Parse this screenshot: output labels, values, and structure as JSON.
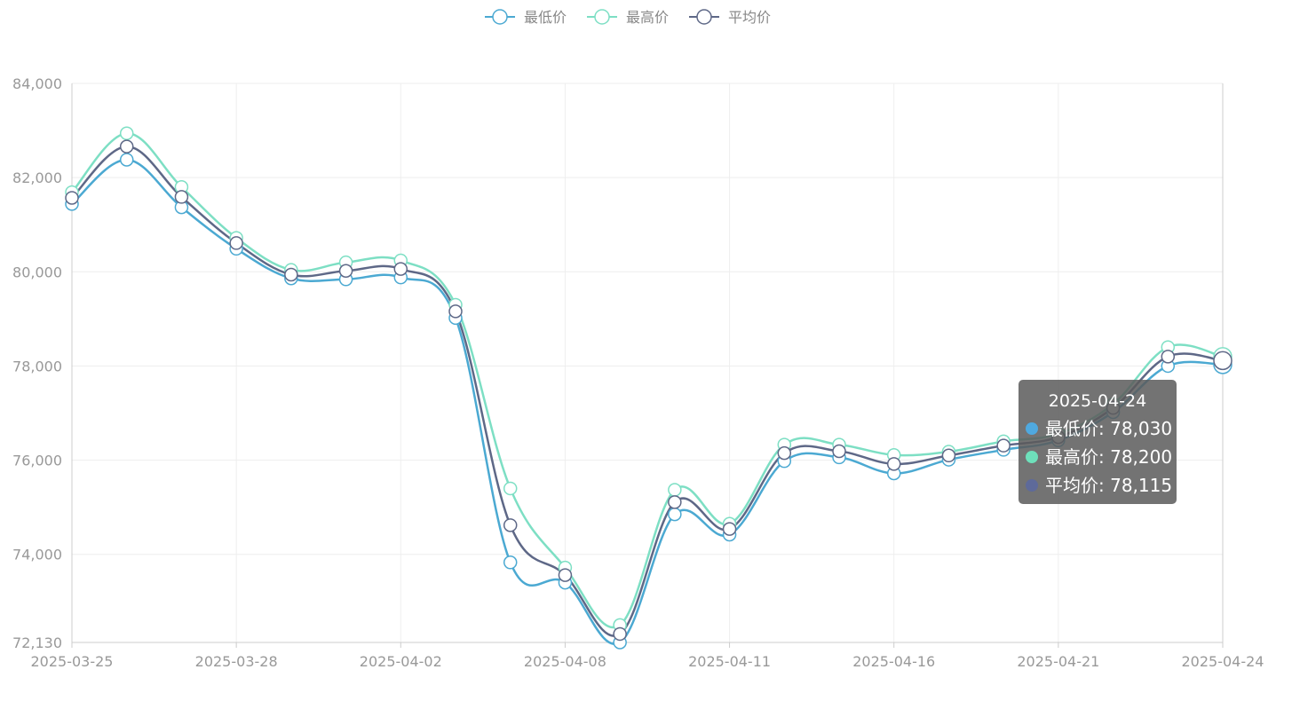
{
  "chart_data": {
    "type": "line",
    "smooth": true,
    "x": [
      "2025-03-25",
      "2025-03-26",
      "2025-03-27",
      "2025-03-28",
      "2025-03-31",
      "2025-04-01",
      "2025-04-02",
      "2025-04-03",
      "2025-04-07",
      "2025-04-08",
      "2025-04-09",
      "2025-04-10",
      "2025-04-11",
      "2025-04-14",
      "2025-04-15",
      "2025-04-16",
      "2025-04-17",
      "2025-04-18",
      "2025-04-21",
      "2025-04-22",
      "2025-04-23",
      "2025-04-24"
    ],
    "x_tick_labels": [
      "2025-03-25",
      "2025-03-28",
      "2025-04-02",
      "2025-04-08",
      "2025-04-11",
      "2025-04-16",
      "2025-04-21",
      "2025-04-24"
    ],
    "y_tick_labels": [
      "72,130",
      "74,000",
      "76,000",
      "78,000",
      "80,000",
      "82,000",
      "84,000"
    ],
    "y_ticks": [
      72130,
      74000,
      76000,
      78000,
      80000,
      82000,
      84000
    ],
    "ylim": [
      72130,
      84000
    ],
    "grid": true,
    "legend_position": "top-center",
    "series": [
      {
        "name": "最低价",
        "color": "#4ba9d2",
        "values": [
          81440,
          82380,
          81370,
          80490,
          79860,
          79840,
          79880,
          79020,
          73830,
          73400,
          72130,
          74850,
          74420,
          75980,
          76060,
          75720,
          76010,
          76220,
          76420,
          77020,
          78000,
          78030
        ]
      },
      {
        "name": "最高价",
        "color": "#7ddfc4",
        "values": [
          81690,
          82940,
          81800,
          80720,
          80040,
          80200,
          80240,
          79300,
          75400,
          73720,
          72500,
          75370,
          74650,
          76330,
          76330,
          76110,
          76180,
          76400,
          76560,
          77190,
          78400,
          78200
        ]
      },
      {
        "name": "平均价",
        "color": "#5e6887",
        "values": [
          81570,
          82660,
          81590,
          80610,
          79940,
          80020,
          80060,
          79160,
          74620,
          73560,
          72310,
          75110,
          74540,
          76150,
          76190,
          75920,
          76100,
          76310,
          76490,
          77110,
          78200,
          78115
        ]
      }
    ],
    "tooltip": {
      "title": "2025-04-24",
      "rows": [
        {
          "label": "最低价: 78,030",
          "color": "#4fa9df"
        },
        {
          "label": "最高价: 78,200",
          "color": "#6ee0bb"
        },
        {
          "label": "平均价: 78,115",
          "color": "#5e6a9a"
        }
      ]
    }
  }
}
